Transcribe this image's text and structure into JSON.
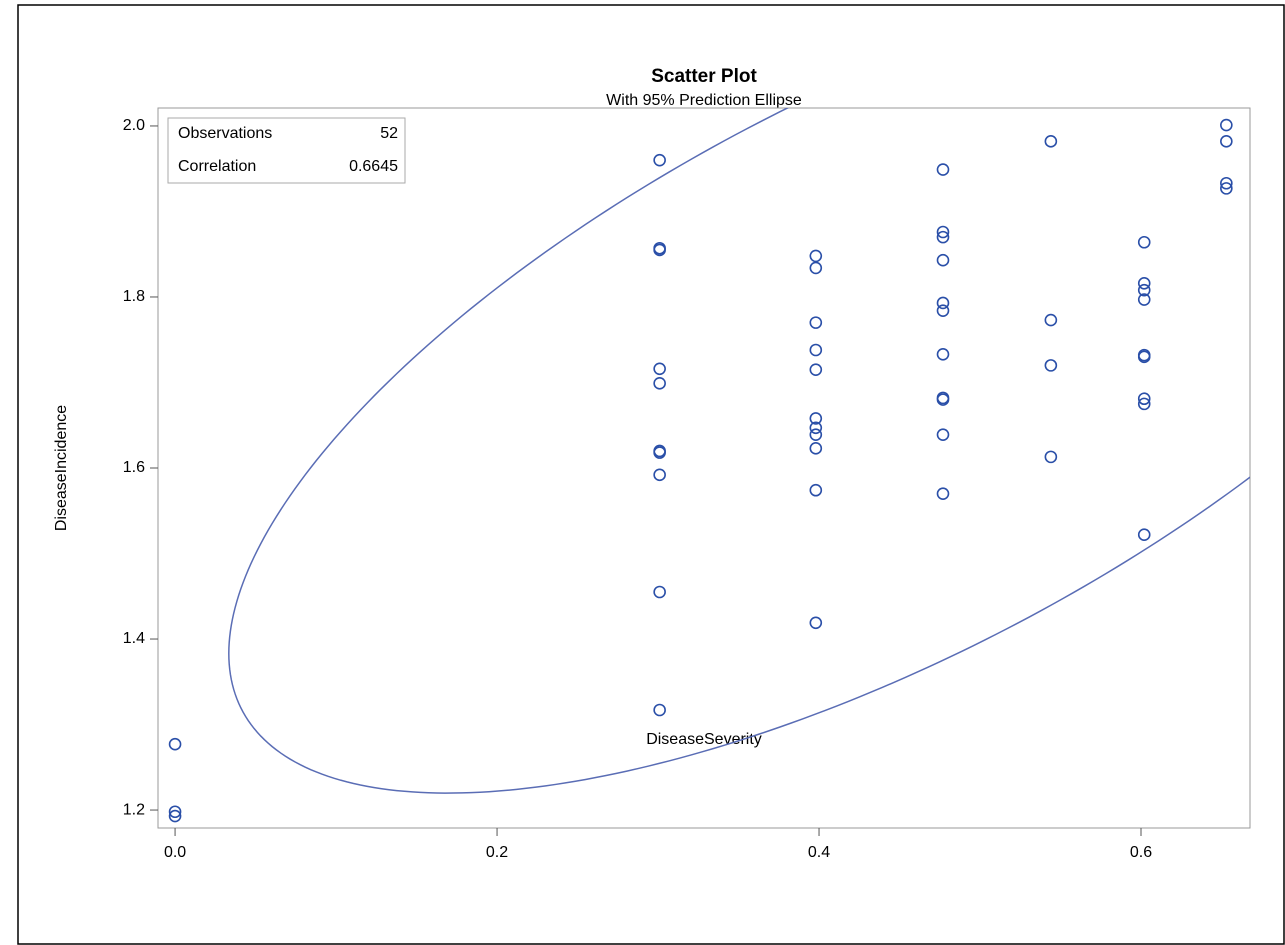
{
  "chart_data": {
    "type": "scatter",
    "title": "Scatter Plot",
    "subtitle": "With 95% Prediction Ellipse",
    "x_label": "DiseaseSeverity",
    "y_label": "DiseaseIncidence",
    "inset": [
      {
        "label": "Observations",
        "value": 52
      },
      {
        "label": "Correlation",
        "value": 0.6645
      }
    ],
    "color": "#2a4fa8",
    "ellipse_color": "#5a6db5",
    "xlim": [
      -0.0106,
      0.6677
    ],
    "ylim": [
      1.179,
      2.021
    ],
    "xticks": [
      {
        "value": 0,
        "label": "0.0"
      },
      0.2,
      0.4,
      0.6
    ],
    "yticks": [
      1.2,
      1.4,
      1.6,
      1.8,
      {
        "value": 2,
        "label": "2.0"
      }
    ],
    "x": [
      0,
      0,
      0,
      0.301,
      0.301,
      0.301,
      0.301,
      0.301,
      0.301,
      0.301,
      0.301,
      0.301,
      0.301,
      0.398,
      0.398,
      0.398,
      0.398,
      0.398,
      0.398,
      0.398,
      0.398,
      0.398,
      0.398,
      0.398,
      0.477,
      0.477,
      0.477,
      0.477,
      0.477,
      0.477,
      0.477,
      0.477,
      0.477,
      0.477,
      0.477,
      0.544,
      0.544,
      0.544,
      0.544,
      0.602,
      0.602,
      0.602,
      0.602,
      0.602,
      0.602,
      0.602,
      0.602,
      0.602,
      0.653,
      0.653,
      0.653,
      0.653
    ],
    "values": [
      1.277,
      1.198,
      1.193,
      1.96,
      1.857,
      1.855,
      1.716,
      1.699,
      1.62,
      1.618,
      1.592,
      1.455,
      1.317,
      1.848,
      1.834,
      1.77,
      1.738,
      1.715,
      1.658,
      1.647,
      1.639,
      1.623,
      1.574,
      1.419,
      1.949,
      1.876,
      1.87,
      1.843,
      1.793,
      1.784,
      1.733,
      1.682,
      1.68,
      1.639,
      1.57,
      1.982,
      1.773,
      1.72,
      1.613,
      1.864,
      1.816,
      1.808,
      1.797,
      1.732,
      1.73,
      1.681,
      1.675,
      1.522,
      2.001,
      1.982,
      1.933,
      1.927
    ]
  }
}
